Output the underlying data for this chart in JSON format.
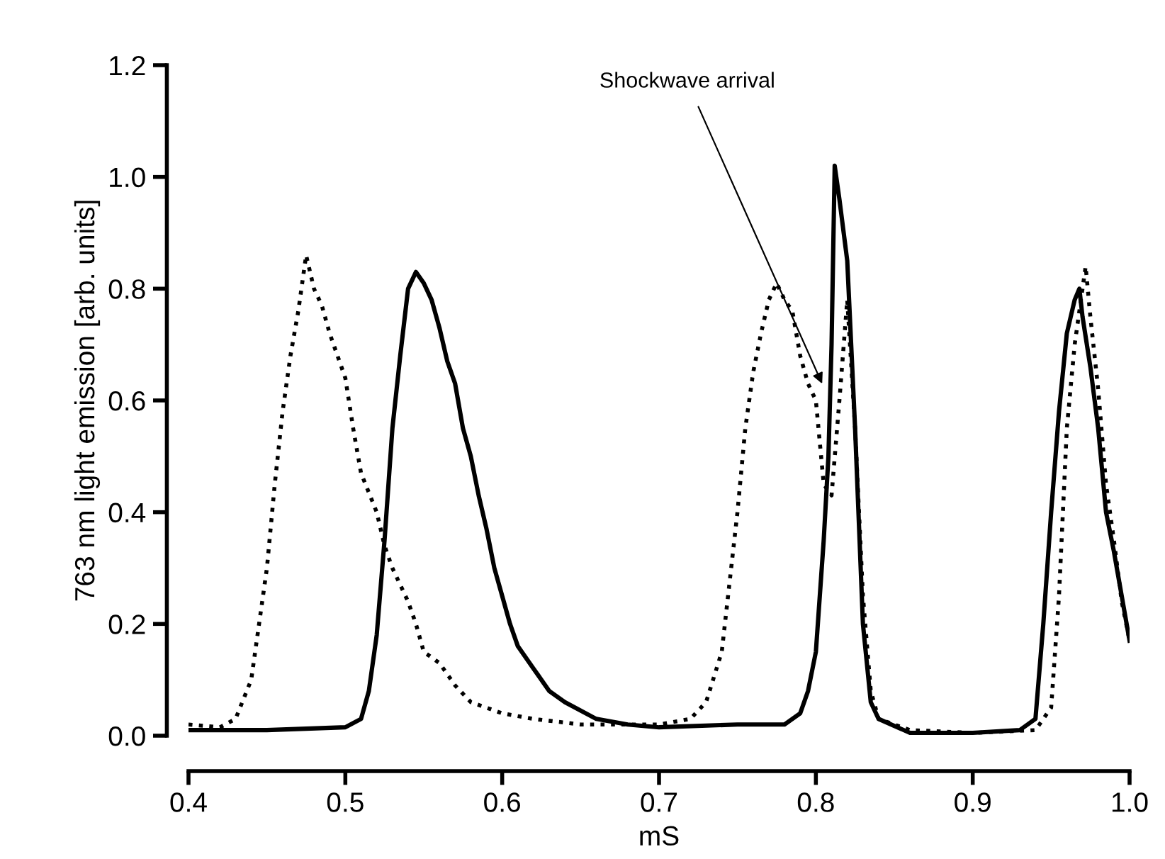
{
  "chart_data": {
    "type": "line",
    "xlabel": "mS",
    "ylabel": "763 nm light emission [arb. units]",
    "xlim": [
      0.4,
      1.0
    ],
    "xticks": [
      0.4,
      0.5,
      0.6,
      0.7,
      0.8,
      0.9,
      {
        "value": 1.0,
        "label": "1.0"
      }
    ],
    "ylim": [
      0,
      1.2
    ],
    "yticks": [
      {
        "value": 0,
        "label": "0.0"
      },
      0.2,
      0.4,
      0.6,
      0.8,
      {
        "value": 1.0,
        "label": "1.0"
      },
      1.2
    ],
    "grid": false,
    "legend": false,
    "annotations": [
      {
        "text": "Shockwave arrival",
        "x": 0.804,
        "y": 0.63
      }
    ],
    "series": [
      {
        "color": "#000000",
        "line_style": "dotted",
        "x": [
          0.4,
          0.42,
          0.43,
          0.44,
          0.45,
          0.455,
          0.46,
          0.465,
          0.47,
          0.475,
          0.48,
          0.485,
          0.49,
          0.495,
          0.5,
          0.505,
          0.51,
          0.52,
          0.525,
          0.53,
          0.54,
          0.545,
          0.55,
          0.56,
          0.57,
          0.58,
          0.6,
          0.62,
          0.65,
          0.68,
          0.7,
          0.72,
          0.73,
          0.74,
          0.75,
          0.755,
          0.76,
          0.765,
          0.77,
          0.775,
          0.78,
          0.785,
          0.79,
          0.795,
          0.8,
          0.805,
          0.81,
          0.815,
          0.82,
          0.825,
          0.83,
          0.835,
          0.84,
          0.86,
          0.9,
          0.94,
          0.95,
          0.955,
          0.96,
          0.965,
          0.97,
          0.972,
          0.975,
          0.98,
          0.985,
          0.99,
          0.995,
          1.0
        ],
        "values": [
          0.02,
          0.015,
          0.03,
          0.1,
          0.3,
          0.45,
          0.58,
          0.68,
          0.76,
          0.86,
          0.8,
          0.77,
          0.72,
          0.68,
          0.64,
          0.55,
          0.47,
          0.4,
          0.34,
          0.3,
          0.24,
          0.2,
          0.15,
          0.13,
          0.09,
          0.06,
          0.04,
          0.03,
          0.02,
          0.02,
          0.02,
          0.03,
          0.06,
          0.15,
          0.4,
          0.55,
          0.65,
          0.72,
          0.78,
          0.81,
          0.78,
          0.76,
          0.68,
          0.63,
          0.6,
          0.45,
          0.43,
          0.6,
          0.78,
          0.55,
          0.25,
          0.08,
          0.03,
          0.01,
          0.005,
          0.01,
          0.05,
          0.25,
          0.55,
          0.7,
          0.8,
          0.84,
          0.75,
          0.62,
          0.45,
          0.35,
          0.24,
          0.17
        ]
      },
      {
        "color": "#000000",
        "line_style": "solid",
        "x": [
          0.4,
          0.45,
          0.5,
          0.51,
          0.515,
          0.52,
          0.525,
          0.53,
          0.535,
          0.54,
          0.545,
          0.55,
          0.555,
          0.56,
          0.565,
          0.57,
          0.575,
          0.58,
          0.585,
          0.59,
          0.595,
          0.6,
          0.605,
          0.61,
          0.62,
          0.63,
          0.64,
          0.66,
          0.68,
          0.7,
          0.75,
          0.78,
          0.79,
          0.795,
          0.8,
          0.805,
          0.808,
          0.81,
          0.812,
          0.815,
          0.82,
          0.825,
          0.83,
          0.835,
          0.84,
          0.86,
          0.9,
          0.93,
          0.94,
          0.945,
          0.95,
          0.955,
          0.96,
          0.965,
          0.968,
          0.97,
          0.975,
          0.98,
          0.985,
          0.99,
          0.995,
          1.0
        ],
        "values": [
          0.01,
          0.01,
          0.015,
          0.03,
          0.08,
          0.18,
          0.35,
          0.55,
          0.68,
          0.8,
          0.83,
          0.81,
          0.78,
          0.73,
          0.67,
          0.63,
          0.55,
          0.5,
          0.43,
          0.37,
          0.3,
          0.25,
          0.2,
          0.16,
          0.12,
          0.08,
          0.06,
          0.03,
          0.02,
          0.015,
          0.02,
          0.02,
          0.04,
          0.08,
          0.15,
          0.35,
          0.5,
          0.7,
          1.02,
          0.96,
          0.85,
          0.55,
          0.2,
          0.06,
          0.03,
          0.005,
          0.005,
          0.01,
          0.03,
          0.2,
          0.4,
          0.58,
          0.72,
          0.78,
          0.8,
          0.75,
          0.66,
          0.55,
          0.4,
          0.33,
          0.25,
          0.17
        ]
      }
    ]
  }
}
